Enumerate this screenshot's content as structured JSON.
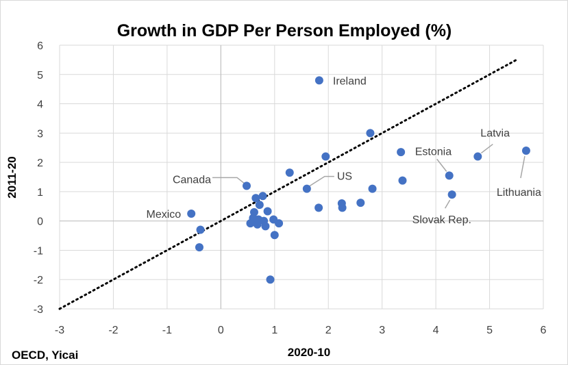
{
  "chart_data": {
    "type": "scatter",
    "title": "Growth in GDP Per Person Employed (%)",
    "xlabel": "2020-10",
    "ylabel": "2011-20",
    "xlim": [
      -3,
      6
    ],
    "ylim": [
      -3,
      6
    ],
    "xticks": [
      -3,
      -2,
      -1,
      0,
      1,
      2,
      3,
      4,
      5,
      6
    ],
    "yticks": [
      -3,
      -2,
      -1,
      0,
      1,
      2,
      3,
      4,
      5,
      6
    ],
    "grid": true,
    "source": "OECD, Yicai",
    "trendline": {
      "style": "dotted",
      "from": [
        -3,
        -3
      ],
      "to": [
        5.5,
        5.5
      ]
    },
    "points": [
      {
        "x": -0.55,
        "y": 0.25
      },
      {
        "x": -0.38,
        "y": -0.3
      },
      {
        "x": -0.4,
        "y": -0.9
      },
      {
        "x": 0.48,
        "y": 1.2
      },
      {
        "x": 0.55,
        "y": -0.08
      },
      {
        "x": 0.6,
        "y": 0.1
      },
      {
        "x": 0.62,
        "y": 0.3
      },
      {
        "x": 0.65,
        "y": 0.78
      },
      {
        "x": 0.68,
        "y": -0.12
      },
      {
        "x": 0.7,
        "y": 0.05
      },
      {
        "x": 0.72,
        "y": 0.55
      },
      {
        "x": 0.78,
        "y": 0.85
      },
      {
        "x": 0.8,
        "y": 0.0
      },
      {
        "x": 0.83,
        "y": -0.18
      },
      {
        "x": 0.87,
        "y": 0.33
      },
      {
        "x": 0.98,
        "y": 0.05
      },
      {
        "x": 1.0,
        "y": -0.48
      },
      {
        "x": 1.08,
        "y": -0.08
      },
      {
        "x": 0.92,
        "y": -2.0
      },
      {
        "x": 1.28,
        "y": 1.65
      },
      {
        "x": 1.6,
        "y": 1.1
      },
      {
        "x": 1.82,
        "y": 0.45
      },
      {
        "x": 1.83,
        "y": 4.8
      },
      {
        "x": 1.95,
        "y": 2.2
      },
      {
        "x": 2.25,
        "y": 0.6
      },
      {
        "x": 2.26,
        "y": 0.45
      },
      {
        "x": 2.6,
        "y": 0.62
      },
      {
        "x": 2.78,
        "y": 3.0
      },
      {
        "x": 2.82,
        "y": 1.1
      },
      {
        "x": 3.35,
        "y": 2.35
      },
      {
        "x": 3.38,
        "y": 1.38
      },
      {
        "x": 4.25,
        "y": 1.55
      },
      {
        "x": 4.3,
        "y": 0.9
      },
      {
        "x": 4.78,
        "y": 2.2
      },
      {
        "x": 5.68,
        "y": 2.4
      }
    ],
    "annotations": [
      {
        "label": "Ireland",
        "x": 1.83,
        "y": 4.8
      },
      {
        "label": "Canada",
        "x": 0.48,
        "y": 1.2
      },
      {
        "label": "US",
        "x": 1.6,
        "y": 1.1
      },
      {
        "label": "Mexico",
        "x": -0.55,
        "y": 0.25
      },
      {
        "label": "Estonia",
        "x": 4.25,
        "y": 1.55
      },
      {
        "label": "Latvia",
        "x": 4.78,
        "y": 2.2
      },
      {
        "label": "Lithuania",
        "x": 5.68,
        "y": 2.4
      },
      {
        "label": "Slovak Rep.",
        "x": 4.3,
        "y": 0.9
      }
    ]
  }
}
